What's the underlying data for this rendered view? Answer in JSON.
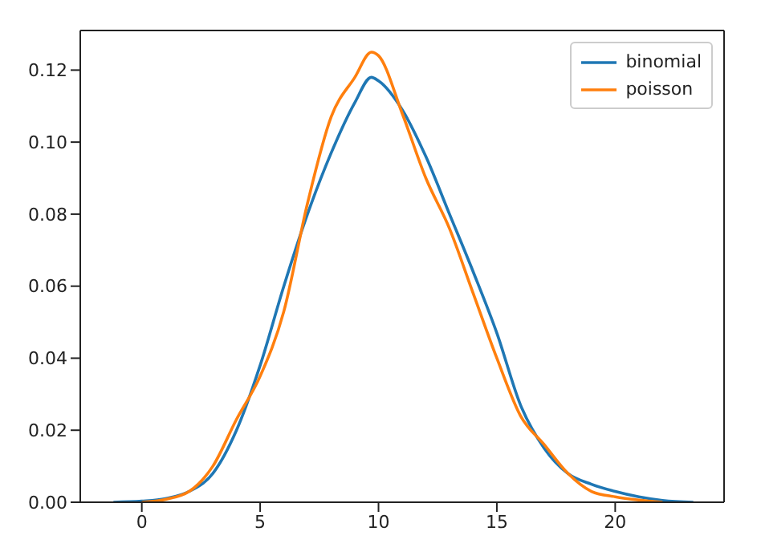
{
  "chart_data": {
    "type": "line",
    "xlim": [
      -2.6,
      24.6
    ],
    "ylim": [
      0,
      0.131
    ],
    "xticks": [
      0,
      5,
      10,
      15,
      20
    ],
    "yticks": [
      {
        "value": 0,
        "label": "0.00"
      },
      {
        "value": 0.02,
        "label": "0.02"
      },
      {
        "value": 0.04,
        "label": "0.04"
      },
      {
        "value": 0.06,
        "label": "0.06"
      },
      {
        "value": 0.08,
        "label": "0.08"
      },
      {
        "value": 0.1,
        "label": "0.10"
      },
      {
        "value": 0.12,
        "label": "0.12"
      }
    ],
    "legend": "top right",
    "grid": false,
    "marker": "none",
    "line_style": "solid",
    "series": [
      {
        "name": "binomial",
        "color": "#1f77b4",
        "x": [
          -1.2,
          0,
          1,
          2,
          3,
          4,
          5,
          6,
          7,
          8,
          9,
          9.7,
          10,
          11,
          12,
          13,
          14,
          15,
          16,
          17,
          18,
          19,
          20,
          21,
          22,
          23.3
        ],
        "values": [
          0,
          0.0003,
          0.001,
          0.003,
          0.008,
          0.02,
          0.038,
          0.06,
          0.08,
          0.097,
          0.111,
          0.118,
          0.117,
          0.109,
          0.096,
          0.08,
          0.064,
          0.047,
          0.027,
          0.015,
          0.008,
          0.005,
          0.003,
          0.0015,
          0.0005,
          0
        ]
      },
      {
        "name": "poisson",
        "color": "#ff7f0e",
        "x": [
          0,
          1,
          2,
          3,
          4,
          5,
          6,
          7,
          8,
          9,
          9.7,
          10,
          11,
          12,
          13,
          14,
          15,
          16,
          17,
          18,
          19,
          20,
          21,
          22
        ],
        "values": [
          0,
          0.0008,
          0.003,
          0.01,
          0.023,
          0.035,
          0.053,
          0.083,
          0.107,
          0.118,
          0.125,
          0.124,
          0.108,
          0.09,
          0.076,
          0.058,
          0.04,
          0.024,
          0.016,
          0.008,
          0.003,
          0.0015,
          0.0006,
          0
        ]
      }
    ]
  }
}
